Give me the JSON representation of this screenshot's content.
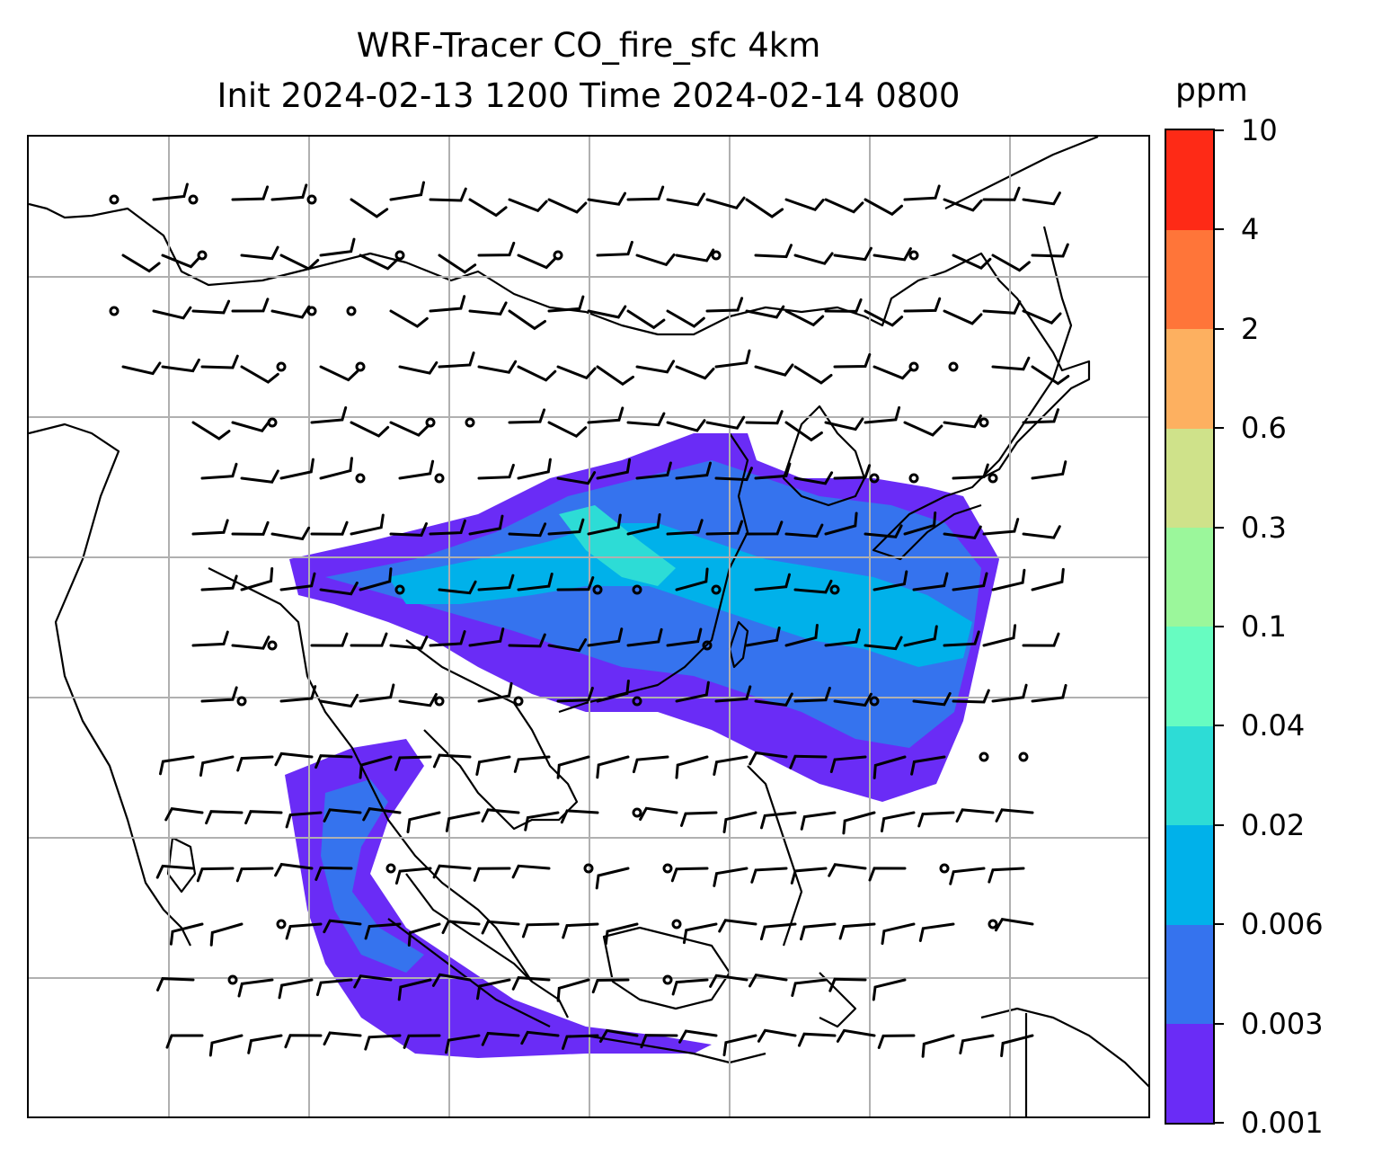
{
  "title": {
    "line1": "WRF-Tracer CO_fire_sfc 4km",
    "line2": "Init 2024-02-13 1200 Time 2024-02-14 0800"
  },
  "colorbar": {
    "unit": "ppm",
    "levels": [
      "0.001",
      "0.003",
      "0.006",
      "0.02",
      "0.04",
      "0.1",
      "0.3",
      "0.6",
      "2",
      "4",
      "10"
    ],
    "colors": [
      "#6a2cf6",
      "#3573ee",
      "#00b1ea",
      "#2ddcd6",
      "#67fcc1",
      "#9bf79b",
      "#cfe28a",
      "#fdb060",
      "#ff7539",
      "#fe2a16"
    ]
  },
  "map": {
    "projection": "lambert",
    "gridlines": true,
    "coastlines": true,
    "wind_barbs": true,
    "field": "CO_fire_sfc",
    "colors": {
      "land": "#000000",
      "grid": "#b0b0b0"
    }
  }
}
